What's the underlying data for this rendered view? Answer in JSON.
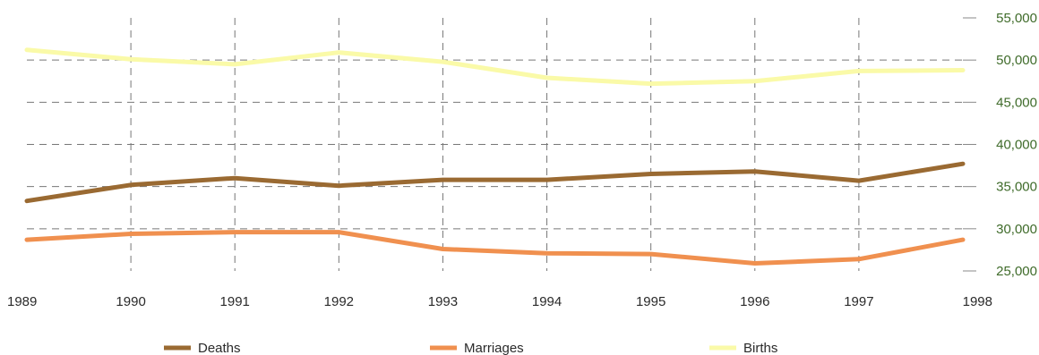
{
  "chart_data": {
    "type": "line",
    "x": [
      "1989",
      "1990",
      "1991",
      "1992",
      "1993",
      "1994",
      "1995",
      "1996",
      "1997",
      "1998"
    ],
    "ylim": [
      25000,
      55000
    ],
    "yticks": [
      "25,000",
      "30,000",
      "35,000",
      "40,000",
      "45,000",
      "50,000",
      "55,000"
    ],
    "ytick_values": [
      25000,
      30000,
      35000,
      40000,
      45000,
      50000,
      55000
    ],
    "grid": true,
    "legend_position": "bottom",
    "series": [
      {
        "name": "Deaths",
        "color": "#9a6a32",
        "values": [
          33300,
          35200,
          36000,
          35100,
          35800,
          35800,
          36500,
          36800,
          35700,
          37700
        ]
      },
      {
        "name": "Marriages",
        "color": "#f0904f",
        "values": [
          28700,
          29400,
          29600,
          29600,
          27600,
          27100,
          27000,
          25900,
          26400,
          28700
        ]
      },
      {
        "name": "Births",
        "color": "#fafaa8",
        "values": [
          51200,
          50100,
          49500,
          50900,
          49800,
          47900,
          47200,
          47500,
          48700,
          48800
        ]
      }
    ]
  }
}
